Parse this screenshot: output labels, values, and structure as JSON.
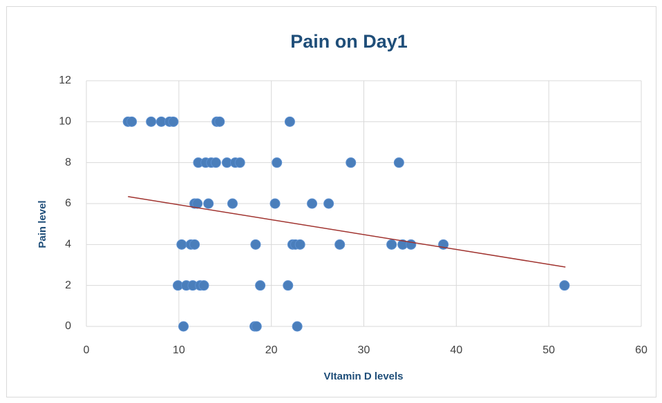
{
  "chart_data": {
    "type": "scatter",
    "title": "Pain on Day1",
    "x_label": "VItamin D  levels",
    "y_label": "Pain level",
    "color": "#4a7ebb",
    "grid": true,
    "xlim": [
      0,
      60
    ],
    "ylim": [
      0,
      12
    ],
    "xticks": [
      0,
      10,
      20,
      30,
      40,
      50,
      60
    ],
    "yticks": [
      0,
      2,
      4,
      6,
      8,
      10,
      12
    ],
    "x": [
      4.5,
      4.9,
      7.0,
      8.1,
      9.0,
      9.4,
      14.1,
      14.4,
      22.0,
      12.1,
      12.9,
      13.5,
      14.0,
      15.2,
      16.1,
      16.6,
      20.6,
      28.6,
      33.8,
      11.7,
      12.0,
      13.2,
      15.8,
      20.4,
      24.4,
      26.2,
      10.3,
      11.3,
      11.7,
      18.3,
      22.3,
      22.6,
      23.1,
      27.4,
      33.0,
      34.2,
      35.1,
      38.6,
      9.9,
      10.8,
      11.5,
      12.3,
      12.7,
      18.8,
      21.8,
      51.7,
      10.5,
      18.2,
      18.4,
      22.8
    ],
    "values": [
      10,
      10,
      10,
      10,
      10,
      10,
      10,
      10,
      10,
      8,
      8,
      8,
      8,
      8,
      8,
      8,
      8,
      8,
      8,
      6,
      6,
      6,
      6,
      6,
      6,
      6,
      4,
      4,
      4,
      4,
      4,
      4,
      4,
      4,
      4,
      4,
      4,
      4,
      2,
      2,
      2,
      2,
      2,
      2,
      2,
      2,
      0,
      0,
      0,
      0
    ],
    "trendline": {
      "color": "#a0322e",
      "x": [
        4.5,
        51.8
      ],
      "values": [
        6.34,
        2.9
      ]
    }
  }
}
